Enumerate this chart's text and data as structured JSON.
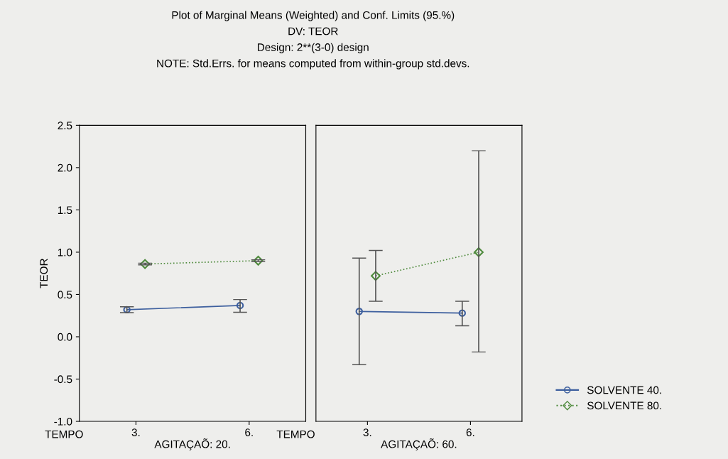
{
  "chart_data": [
    {
      "type": "line",
      "title": "Plot of Marginal Means (Weighted) and Conf. Limits (95.%)",
      "subtitle": "DV: TEOR",
      "annotations": [
        "Design: 2**(3-0) design",
        "NOTE: Std.Errs. for means computed from within-group std.devs.",
        "TEMPO"
      ],
      "ylabel": "TEOR",
      "xlabel": "AGITAÇAÕ: 20.",
      "categories": [
        "3.",
        "6."
      ],
      "ylim": [
        -1.0,
        2.5
      ],
      "yticks": [
        {
          "value": -1.0,
          "label": "-1.0"
        },
        {
          "value": -0.5,
          "label": "-0.5"
        },
        {
          "value": 0.0,
          "label": "0.0"
        },
        {
          "value": 0.5,
          "label": "0.5"
        },
        {
          "value": 1.0,
          "label": "1.0"
        },
        {
          "value": 1.5,
          "label": "1.5"
        },
        {
          "value": 2.0,
          "label": "2.0"
        },
        {
          "value": 2.5,
          "label": "2.5"
        }
      ],
      "grid": false,
      "legend": false,
      "series": [
        {
          "color": "#3d5f9e",
          "marker": "circle",
          "line_style": "solid",
          "values": [
            0.32,
            0.37
          ],
          "errors": [
            0.035,
            [
              0.29,
              0.44
            ]
          ]
        },
        {
          "color": "#4e8a3c",
          "marker": "diamond",
          "line_style": "dotted",
          "values": [
            0.86,
            0.9
          ],
          "errors": [
            0.01,
            0.01
          ]
        }
      ]
    },
    {
      "type": "line",
      "xlabel": "AGITAÇAÕ: 60.",
      "annotations": [
        "TEMPO"
      ],
      "categories": [
        "3.",
        "6."
      ],
      "ylim": [
        -1.0,
        2.5
      ],
      "tick_labels": "x",
      "grid": false,
      "legend": "right",
      "series": [
        {
          "name": "SOLVENTE 40.",
          "color": "#3d5f9e",
          "marker": "circle",
          "line_style": "solid",
          "values": [
            0.3,
            0.28
          ],
          "errors": [
            [
              -0.33,
              0.93
            ],
            [
              0.13,
              0.42
            ]
          ]
        },
        {
          "name": "SOLVENTE 80.",
          "color": "#4e8a3c",
          "marker": "diamond",
          "line_style": "dotted",
          "values": [
            0.72,
            1.0
          ],
          "errors": [
            [
              0.42,
              1.02
            ],
            [
              -0.18,
              2.2
            ]
          ]
        }
      ]
    }
  ]
}
